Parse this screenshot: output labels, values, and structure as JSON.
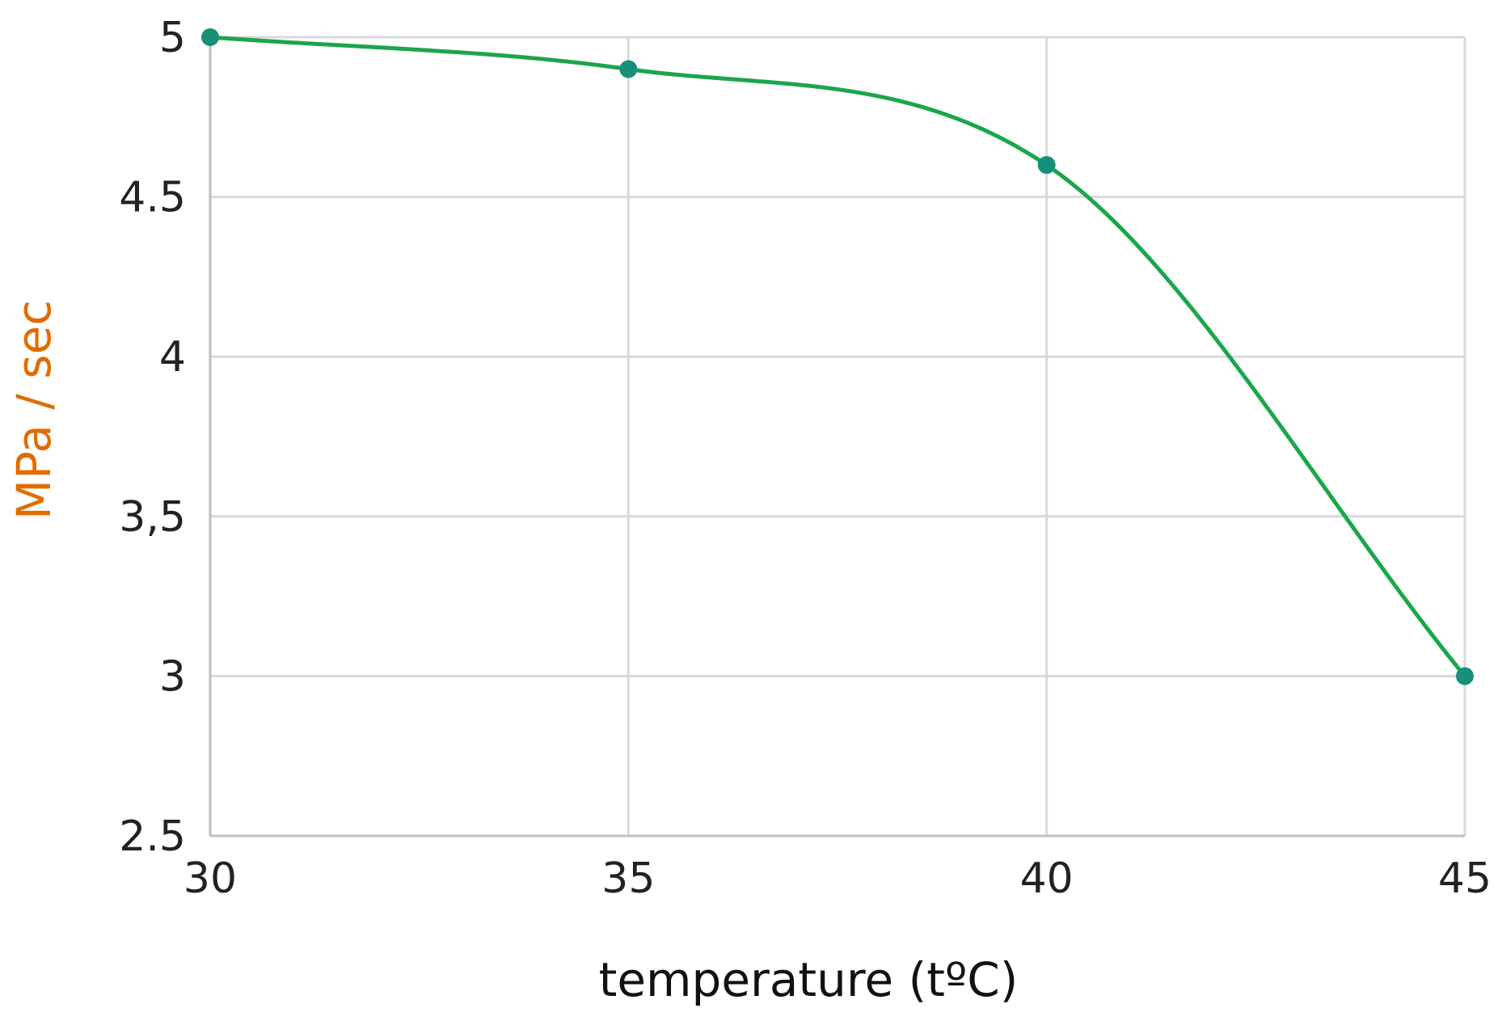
{
  "chart_data": {
    "type": "line",
    "xlabel": "temperature (tºC)",
    "ylabel": "MPa / sec",
    "x_ticks": [
      "30",
      "35",
      "40",
      "45"
    ],
    "y_ticks": [
      "2.5",
      "3",
      "3,5",
      "4",
      "4.5",
      "5"
    ],
    "xlim": [
      30,
      45
    ],
    "ylim": [
      2.5,
      5
    ],
    "grid": true,
    "series": [
      {
        "x": [
          30,
          35,
          40,
          45
        ],
        "values": [
          5.0,
          4.9,
          4.6,
          3.0
        ],
        "color": "#1aa64a",
        "marker_color": "#17907a"
      }
    ],
    "colors": {
      "ylabel": "#e06c00",
      "xlabel": "#111111"
    }
  }
}
